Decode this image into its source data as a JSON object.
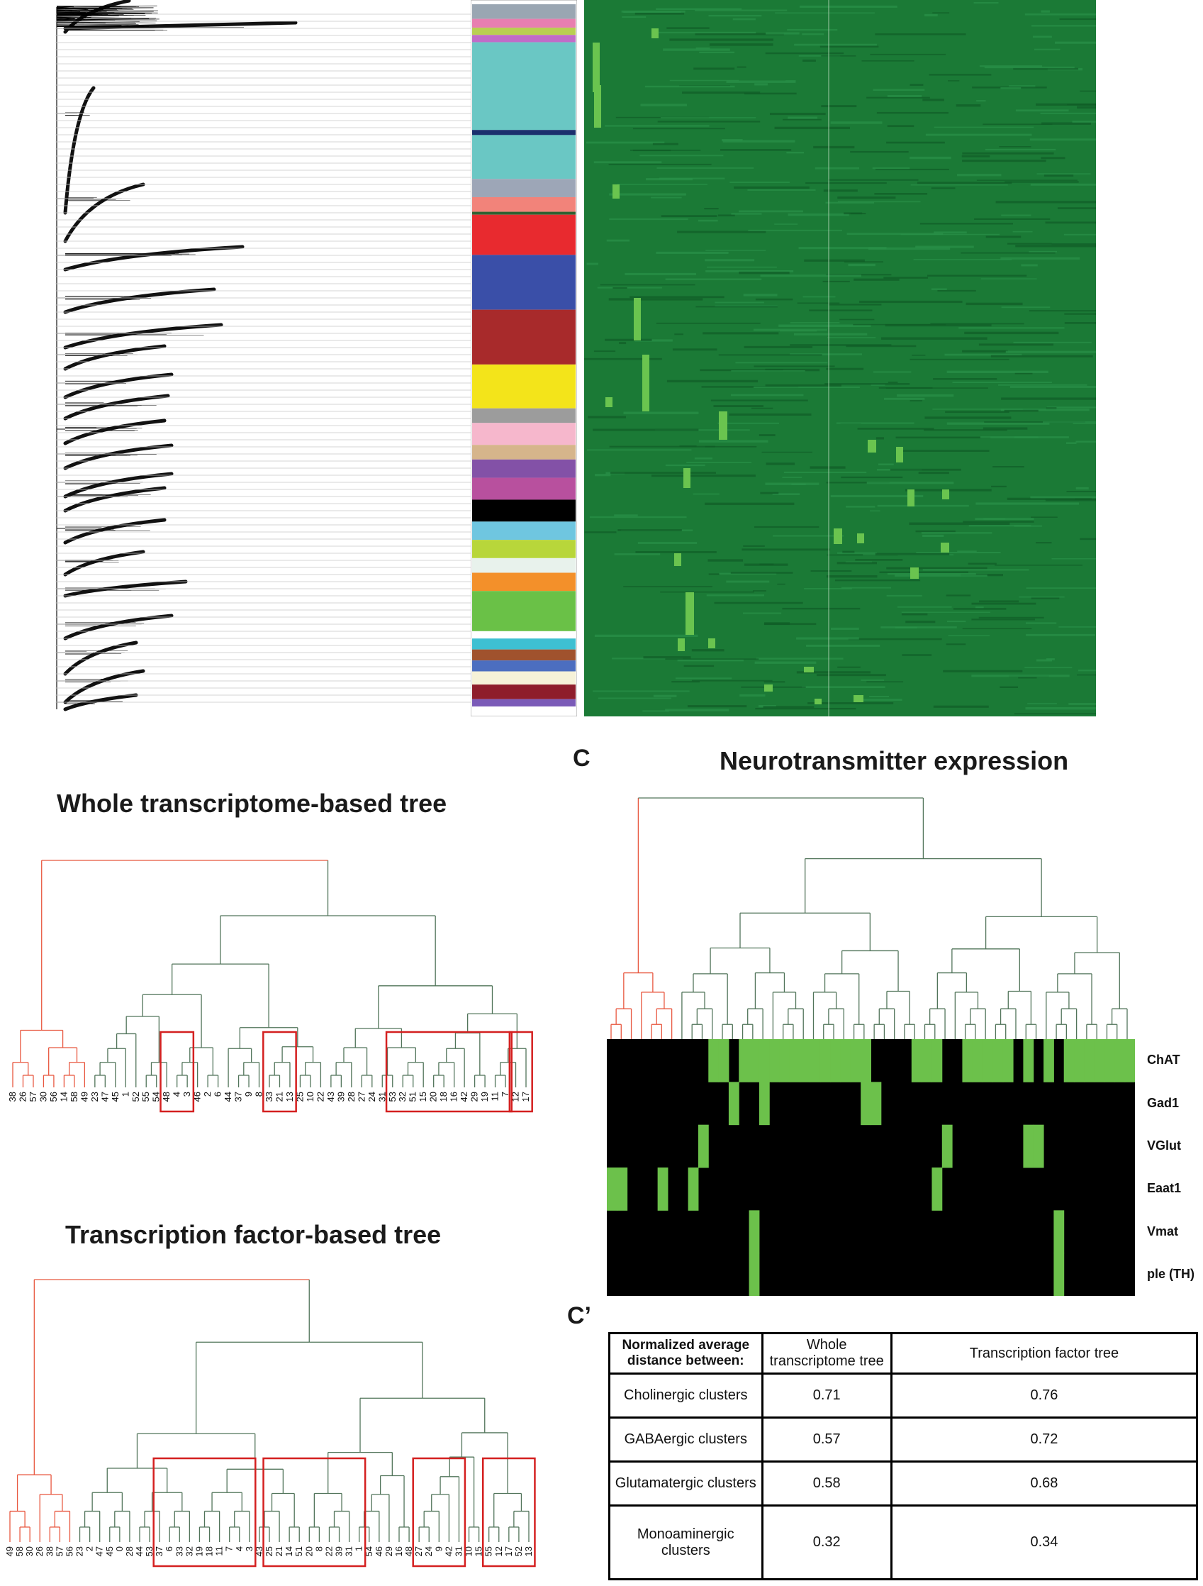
{
  "titles": {
    "whole_tree": "Whole transcriptome-based tree",
    "tf_tree": "Transcription factor-based tree",
    "nt_expression": "Neurotransmitter expression"
  },
  "panel_letters": {
    "c": "C",
    "c_prime": "C’"
  },
  "colors": {
    "highlight_branch": "#e8573f",
    "normal_branch": "#51745a",
    "box": "#d42020",
    "heatmap_bg": "#1b7a36",
    "heatmap_hot": "#6ac44f",
    "matrix_on": "#6cc14b",
    "matrix_off": "#000000"
  },
  "top_colorbar": [
    {
      "color": "#9aa6b2",
      "frac": 0.02
    },
    {
      "color": "#e87fb0",
      "frac": 0.012
    },
    {
      "color": "#b9cf52",
      "frac": 0.01
    },
    {
      "color": "#c16cc8",
      "frac": 0.01
    },
    {
      "color": "#6ac7c4",
      "frac": 0.12
    },
    {
      "color": "#1b2f6d",
      "frac": 0.007
    },
    {
      "color": "#6ac7c4",
      "frac": 0.06
    },
    {
      "color": "#9da6b7",
      "frac": 0.025
    },
    {
      "color": "#f2837a",
      "frac": 0.02
    },
    {
      "color": "#2e6030",
      "frac": 0.004
    },
    {
      "color": "#e82a2f",
      "frac": 0.055
    },
    {
      "color": "#3a4fa8",
      "frac": 0.075
    },
    {
      "color": "#a82a2b",
      "frac": 0.075
    },
    {
      "color": "#f3e41a",
      "frac": 0.06
    },
    {
      "color": "#9c9c9c",
      "frac": 0.02
    },
    {
      "color": "#f6b7cc",
      "frac": 0.03
    },
    {
      "color": "#d6b58b",
      "frac": 0.02
    },
    {
      "color": "#8351a7",
      "frac": 0.025
    },
    {
      "color": "#b8509e",
      "frac": 0.03
    },
    {
      "color": "#000000",
      "frac": 0.03
    },
    {
      "color": "#6fc6e0",
      "frac": 0.025
    },
    {
      "color": "#b8d63a",
      "frac": 0.025
    },
    {
      "color": "#e8f2ec",
      "frac": 0.02
    },
    {
      "color": "#f3902a",
      "frac": 0.025
    },
    {
      "color": "#6ac147",
      "frac": 0.055
    },
    {
      "color": "#ffffff",
      "frac": 0.01
    },
    {
      "color": "#3ec0d2",
      "frac": 0.015
    },
    {
      "color": "#a0522d",
      "frac": 0.015
    },
    {
      "color": "#4c6ec0",
      "frac": 0.015
    },
    {
      "color": "#f6f2d8",
      "frac": 0.018
    },
    {
      "color": "#8e1d2b",
      "frac": 0.02
    },
    {
      "color": "#7b5bb8",
      "frac": 0.01
    }
  ],
  "tree_whole": {
    "leaves": [
      "38",
      "26",
      "57",
      "30",
      "56",
      "14",
      "58",
      "49",
      "23",
      "47",
      "45",
      "1",
      "52",
      "55",
      "54",
      "48",
      "4",
      "3",
      "46",
      "2",
      "6",
      "44",
      "37",
      "9",
      "8",
      "33",
      "21",
      "13",
      "25",
      "10",
      "22",
      "43",
      "39",
      "28",
      "27",
      "24",
      "31",
      "53",
      "32",
      "51",
      "15",
      "20",
      "18",
      "16",
      "42",
      "29",
      "19",
      "11",
      "7",
      "12",
      "17"
    ],
    "red_count": 8,
    "boxes": [
      [
        15,
        17
      ],
      [
        25,
        27
      ],
      [
        37,
        48
      ],
      [
        49,
        50
      ]
    ]
  },
  "tree_tf": {
    "leaves": [
      "49",
      "58",
      "30",
      "26",
      "38",
      "57",
      "56",
      "23",
      "2",
      "47",
      "45",
      "0",
      "28",
      "44",
      "53",
      "37",
      "6",
      "33",
      "32",
      "19",
      "18",
      "11",
      "7",
      "4",
      "3",
      "43",
      "25",
      "21",
      "14",
      "51",
      "20",
      "8",
      "22",
      "39",
      "31",
      "1",
      "54",
      "46",
      "29",
      "16",
      "48",
      "27",
      "24",
      "9",
      "42",
      "31",
      "10",
      "15",
      "55",
      "12",
      "17",
      "52",
      "13"
    ],
    "red_count": 7,
    "boxes": [
      [
        15,
        24
      ],
      [
        26,
        35
      ],
      [
        41,
        45
      ],
      [
        48,
        52
      ]
    ]
  },
  "nt": {
    "genes": [
      "ChAT",
      "Gad1",
      "VGlut",
      "Eaat1",
      "Vmat",
      "ple (TH)"
    ],
    "n_clusters": 52,
    "red_count": 7,
    "on_cells": {
      "ChAT": [
        10,
        11,
        13,
        14,
        15,
        16,
        17,
        18,
        19,
        20,
        21,
        22,
        23,
        24,
        25,
        30,
        31,
        32,
        35,
        36,
        37,
        38,
        39,
        41,
        43,
        45,
        46,
        47,
        48,
        49,
        50,
        51
      ],
      "Gad1": [
        12,
        15,
        25,
        26
      ],
      "VGlut": [
        9,
        33,
        41,
        42
      ],
      "Eaat1": [
        0,
        1,
        5,
        8,
        32
      ],
      "Vmat": [
        14,
        44
      ],
      "ple (TH)": [
        14,
        44
      ]
    }
  },
  "table": {
    "headers": [
      "Normalized average distance between:",
      "Whole transcriptome tree",
      "Transcription factor tree"
    ],
    "rows": [
      [
        "Cholinergic clusters",
        "0.71",
        "0.76"
      ],
      [
        "GABAergic clusters",
        "0.57",
        "0.72"
      ],
      [
        "Glutamatergic clusters",
        "0.58",
        "0.68"
      ],
      [
        "Monoaminergic clusters",
        "0.32",
        "0.34"
      ]
    ]
  }
}
